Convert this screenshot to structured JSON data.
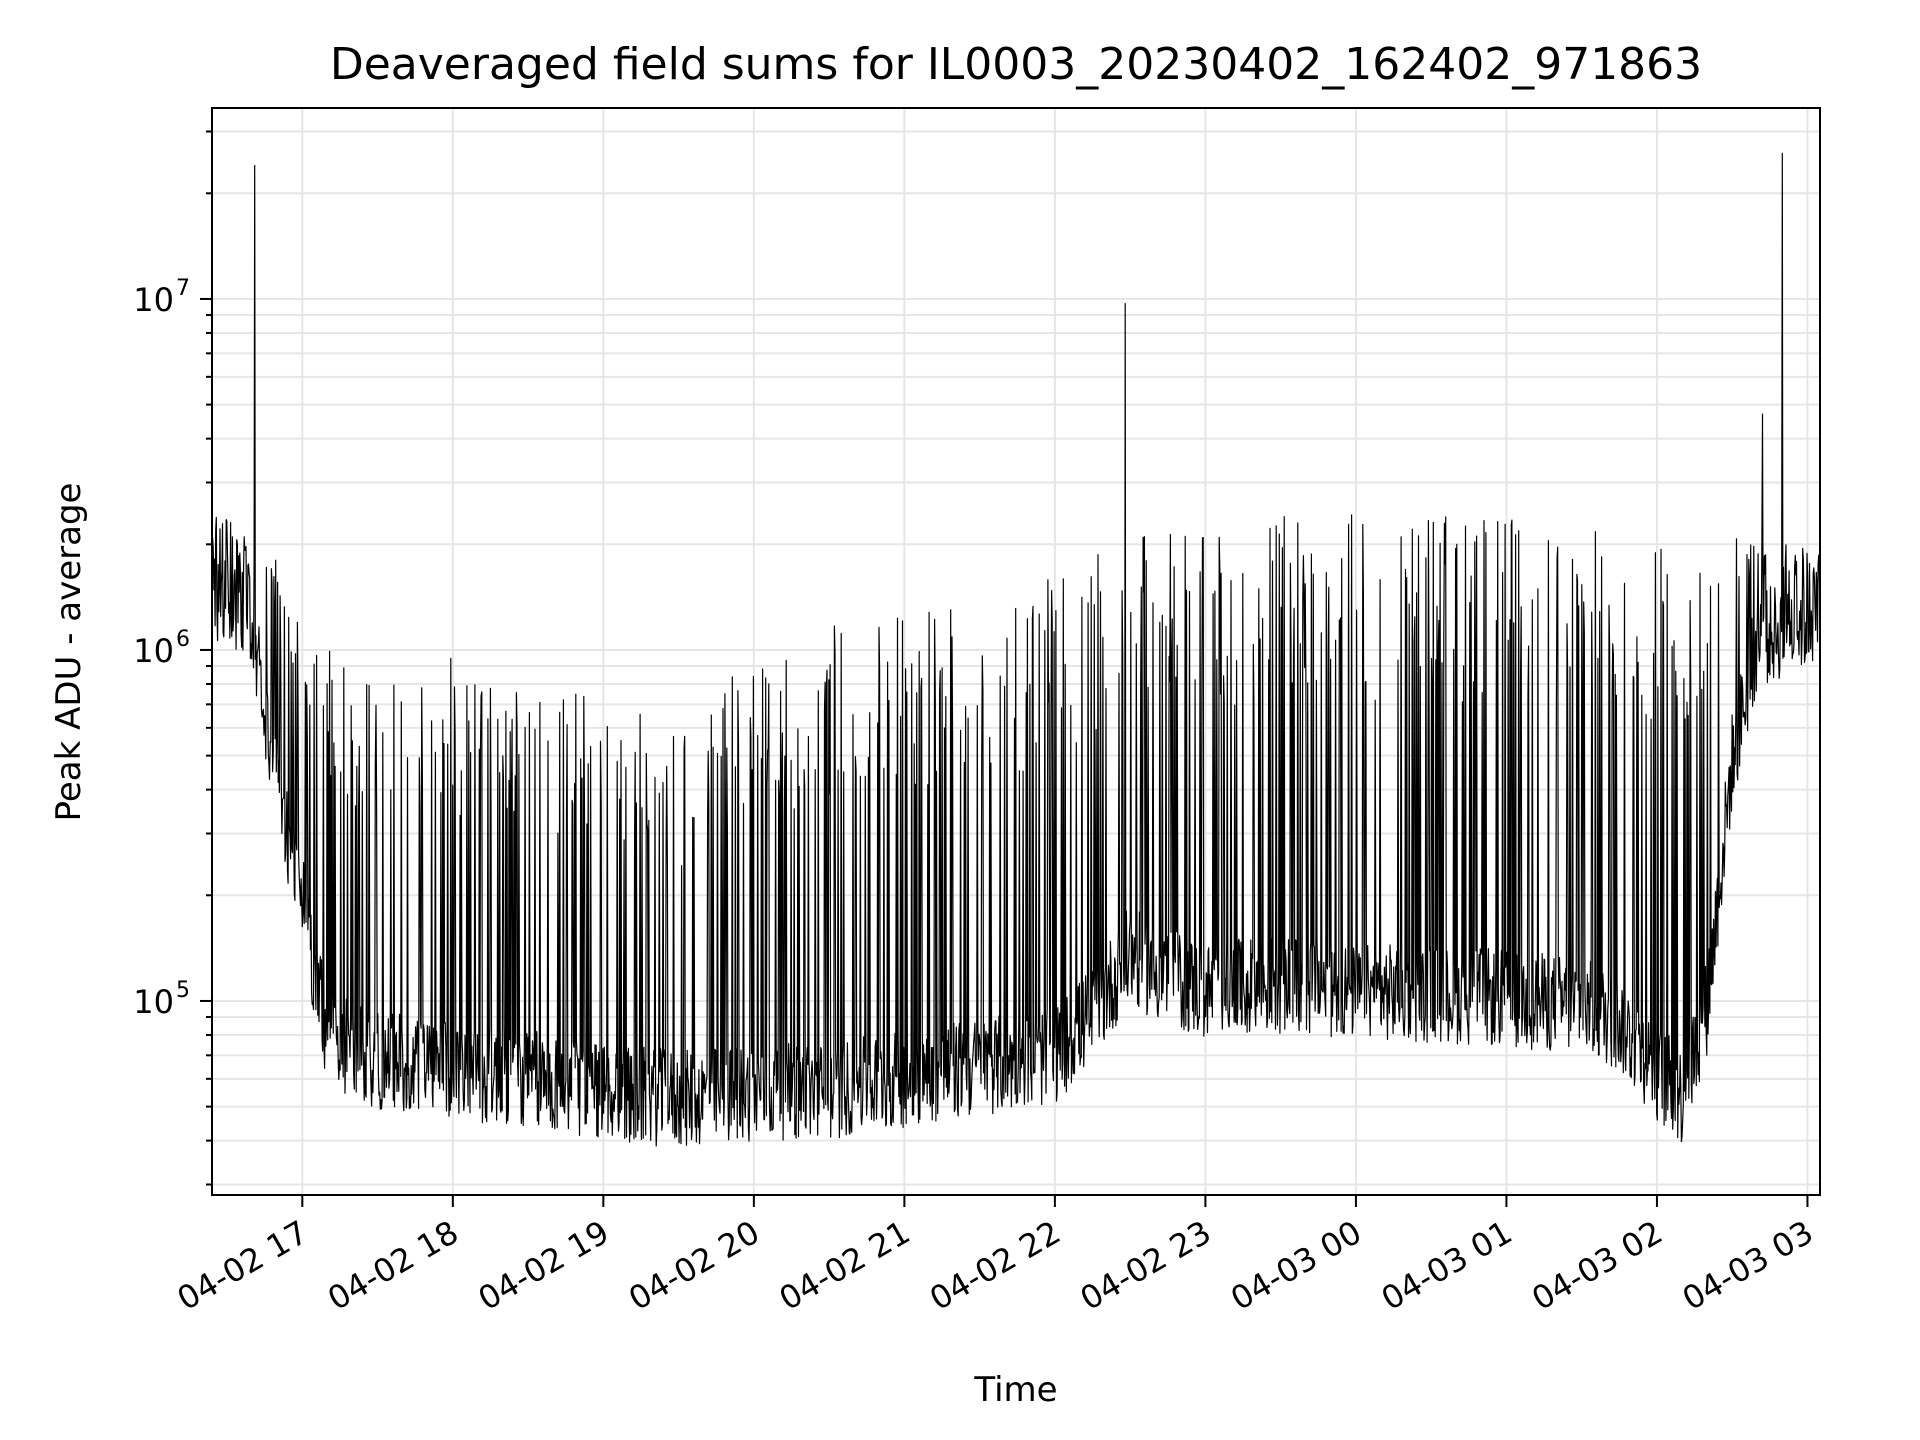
{
  "chart_data": {
    "type": "line",
    "title": "Deaveraged field sums for IL0003_20230402_162402_971863",
    "xlabel": "Time",
    "ylabel": "Peak ADU - average",
    "yscale": "log",
    "xlim": [
      "2023-04-02 16:24",
      "2023-04-03 03:05"
    ],
    "ylim": [
      28000,
      35000000
    ],
    "grid": true,
    "line_color": "#000000",
    "grid_color": "#e6e6e6",
    "x_ticks": [
      "2023-04-02 17:00",
      "2023-04-02 18:00",
      "2023-04-02 19:00",
      "2023-04-02 20:00",
      "2023-04-02 21:00",
      "2023-04-02 22:00",
      "2023-04-02 23:00",
      "2023-04-03 00:00",
      "2023-04-03 01:00",
      "2023-04-03 02:00",
      "2023-04-03 03:00"
    ],
    "x_tick_labels": [
      "04-02 17",
      "04-02 18",
      "04-02 19",
      "04-02 20",
      "04-02 21",
      "04-02 22",
      "04-02 23",
      "04-03 00",
      "04-03 01",
      "04-03 02",
      "04-03 03"
    ],
    "y_ticks": [
      100000,
      1000000,
      10000000
    ],
    "y_tick_labels": [
      {
        "base": "10",
        "exp": "5"
      },
      {
        "base": "10",
        "exp": "6"
      },
      {
        "base": "10",
        "exp": "7"
      }
    ],
    "baseline": [
      {
        "x": "2023-04-02 16:24",
        "y": 1500000
      },
      {
        "x": "2023-04-02 16:40",
        "y": 1300000
      },
      {
        "x": "2023-04-02 16:48",
        "y": 500000
      },
      {
        "x": "2023-04-02 17:00",
        "y": 200000
      },
      {
        "x": "2023-04-02 17:10",
        "y": 80000
      },
      {
        "x": "2023-04-02 17:30",
        "y": 70000
      },
      {
        "x": "2023-04-02 18:00",
        "y": 65000
      },
      {
        "x": "2023-04-02 18:30",
        "y": 62000
      },
      {
        "x": "2023-04-02 19:00",
        "y": 57000
      },
      {
        "x": "2023-04-02 19:30",
        "y": 54000
      },
      {
        "x": "2023-04-02 20:00",
        "y": 57000
      },
      {
        "x": "2023-04-02 20:30",
        "y": 57000
      },
      {
        "x": "2023-04-02 21:00",
        "y": 62000
      },
      {
        "x": "2023-04-02 21:30",
        "y": 67000
      },
      {
        "x": "2023-04-02 22:00",
        "y": 72000
      },
      {
        "x": "2023-04-02 22:15",
        "y": 95000
      },
      {
        "x": "2023-04-02 22:30",
        "y": 140000
      },
      {
        "x": "2023-04-02 22:40",
        "y": 125000
      },
      {
        "x": "2023-04-02 23:00",
        "y": 110000
      },
      {
        "x": "2023-04-02 23:30",
        "y": 115000
      },
      {
        "x": "2023-04-03 00:00",
        "y": 110000
      },
      {
        "x": "2023-04-03 00:30",
        "y": 108000
      },
      {
        "x": "2023-04-03 01:00",
        "y": 105000
      },
      {
        "x": "2023-04-03 01:30",
        "y": 100000
      },
      {
        "x": "2023-04-03 01:45",
        "y": 90000
      },
      {
        "x": "2023-04-03 02:00",
        "y": 65000
      },
      {
        "x": "2023-04-03 02:10",
        "y": 55000
      },
      {
        "x": "2023-04-03 02:20",
        "y": 100000
      },
      {
        "x": "2023-04-03 02:30",
        "y": 500000
      },
      {
        "x": "2023-04-03 02:40",
        "y": 1100000
      },
      {
        "x": "2023-04-03 03:05",
        "y": 1300000
      }
    ],
    "envelope": [
      {
        "x": "2023-04-02 16:24",
        "y": 2500000
      },
      {
        "x": "2023-04-02 16:48",
        "y": 2000000
      },
      {
        "x": "2023-04-02 17:00",
        "y": 1200000
      },
      {
        "x": "2023-04-02 17:30",
        "y": 900000
      },
      {
        "x": "2023-04-02 18:00",
        "y": 1000000
      },
      {
        "x": "2023-04-02 18:30",
        "y": 800000
      },
      {
        "x": "2023-04-02 19:00",
        "y": 750000
      },
      {
        "x": "2023-04-02 19:30",
        "y": 600000
      },
      {
        "x": "2023-04-02 20:00",
        "y": 1000000
      },
      {
        "x": "2023-04-02 20:30",
        "y": 1200000
      },
      {
        "x": "2023-04-02 21:00",
        "y": 1400000
      },
      {
        "x": "2023-04-02 21:30",
        "y": 1500000
      },
      {
        "x": "2023-04-02 22:00",
        "y": 1600000
      },
      {
        "x": "2023-04-02 22:30",
        "y": 2100000
      },
      {
        "x": "2023-04-02 23:00",
        "y": 2300000
      },
      {
        "x": "2023-04-02 23:30",
        "y": 2400000
      },
      {
        "x": "2023-04-03 00:00",
        "y": 2500000
      },
      {
        "x": "2023-04-03 00:30",
        "y": 2500000
      },
      {
        "x": "2023-04-03 01:00",
        "y": 2400000
      },
      {
        "x": "2023-04-03 01:30",
        "y": 2300000
      },
      {
        "x": "2023-04-03 02:00",
        "y": 2100000
      },
      {
        "x": "2023-04-03 02:30",
        "y": 2200000
      },
      {
        "x": "2023-04-03 03:05",
        "y": 1900000
      }
    ],
    "spikes": [
      {
        "x": "2023-04-02 16:41",
        "y": 24000000
      },
      {
        "x": "2023-04-02 22:28",
        "y": 9700000
      },
      {
        "x": "2023-04-03 02:42",
        "y": 4700000
      },
      {
        "x": "2023-04-03 02:50",
        "y": 26000000
      }
    ]
  }
}
